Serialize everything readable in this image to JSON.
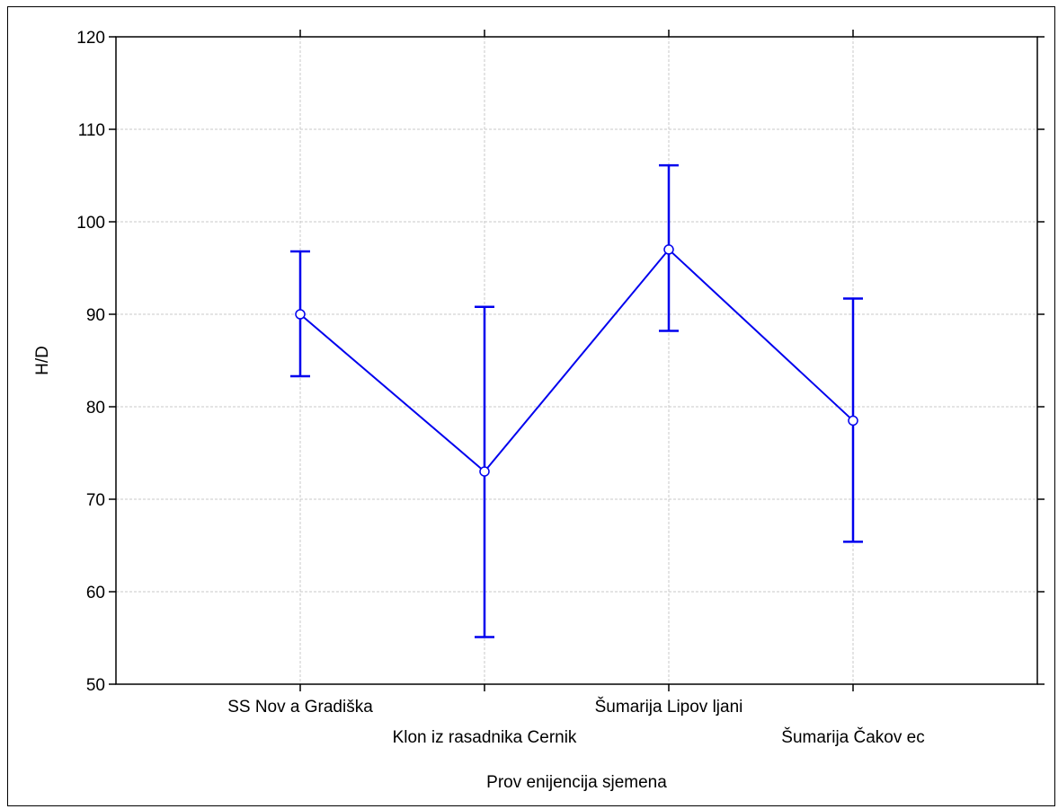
{
  "chart_data": {
    "type": "line",
    "title": "",
    "xlabel": "Prov enijencija sjemena",
    "ylabel": "H/D",
    "categories": [
      "SS Nov a Gradiška",
      "Klon iz rasadnika Cernik",
      "Šumarija Lipov ljani",
      "Šumarija Čakov ec"
    ],
    "series": [
      {
        "values": [
          90.0,
          73.0,
          97.0,
          78.5
        ],
        "error_low": [
          83.3,
          55.1,
          88.2,
          65.4
        ],
        "error_high": [
          96.8,
          90.8,
          106.1,
          91.7
        ],
        "color": "#0000ee"
      }
    ],
    "ylim": [
      50,
      120
    ],
    "yticks": [
      50,
      60,
      70,
      80,
      90,
      100,
      110,
      120
    ],
    "grid": true,
    "legend": "none"
  }
}
